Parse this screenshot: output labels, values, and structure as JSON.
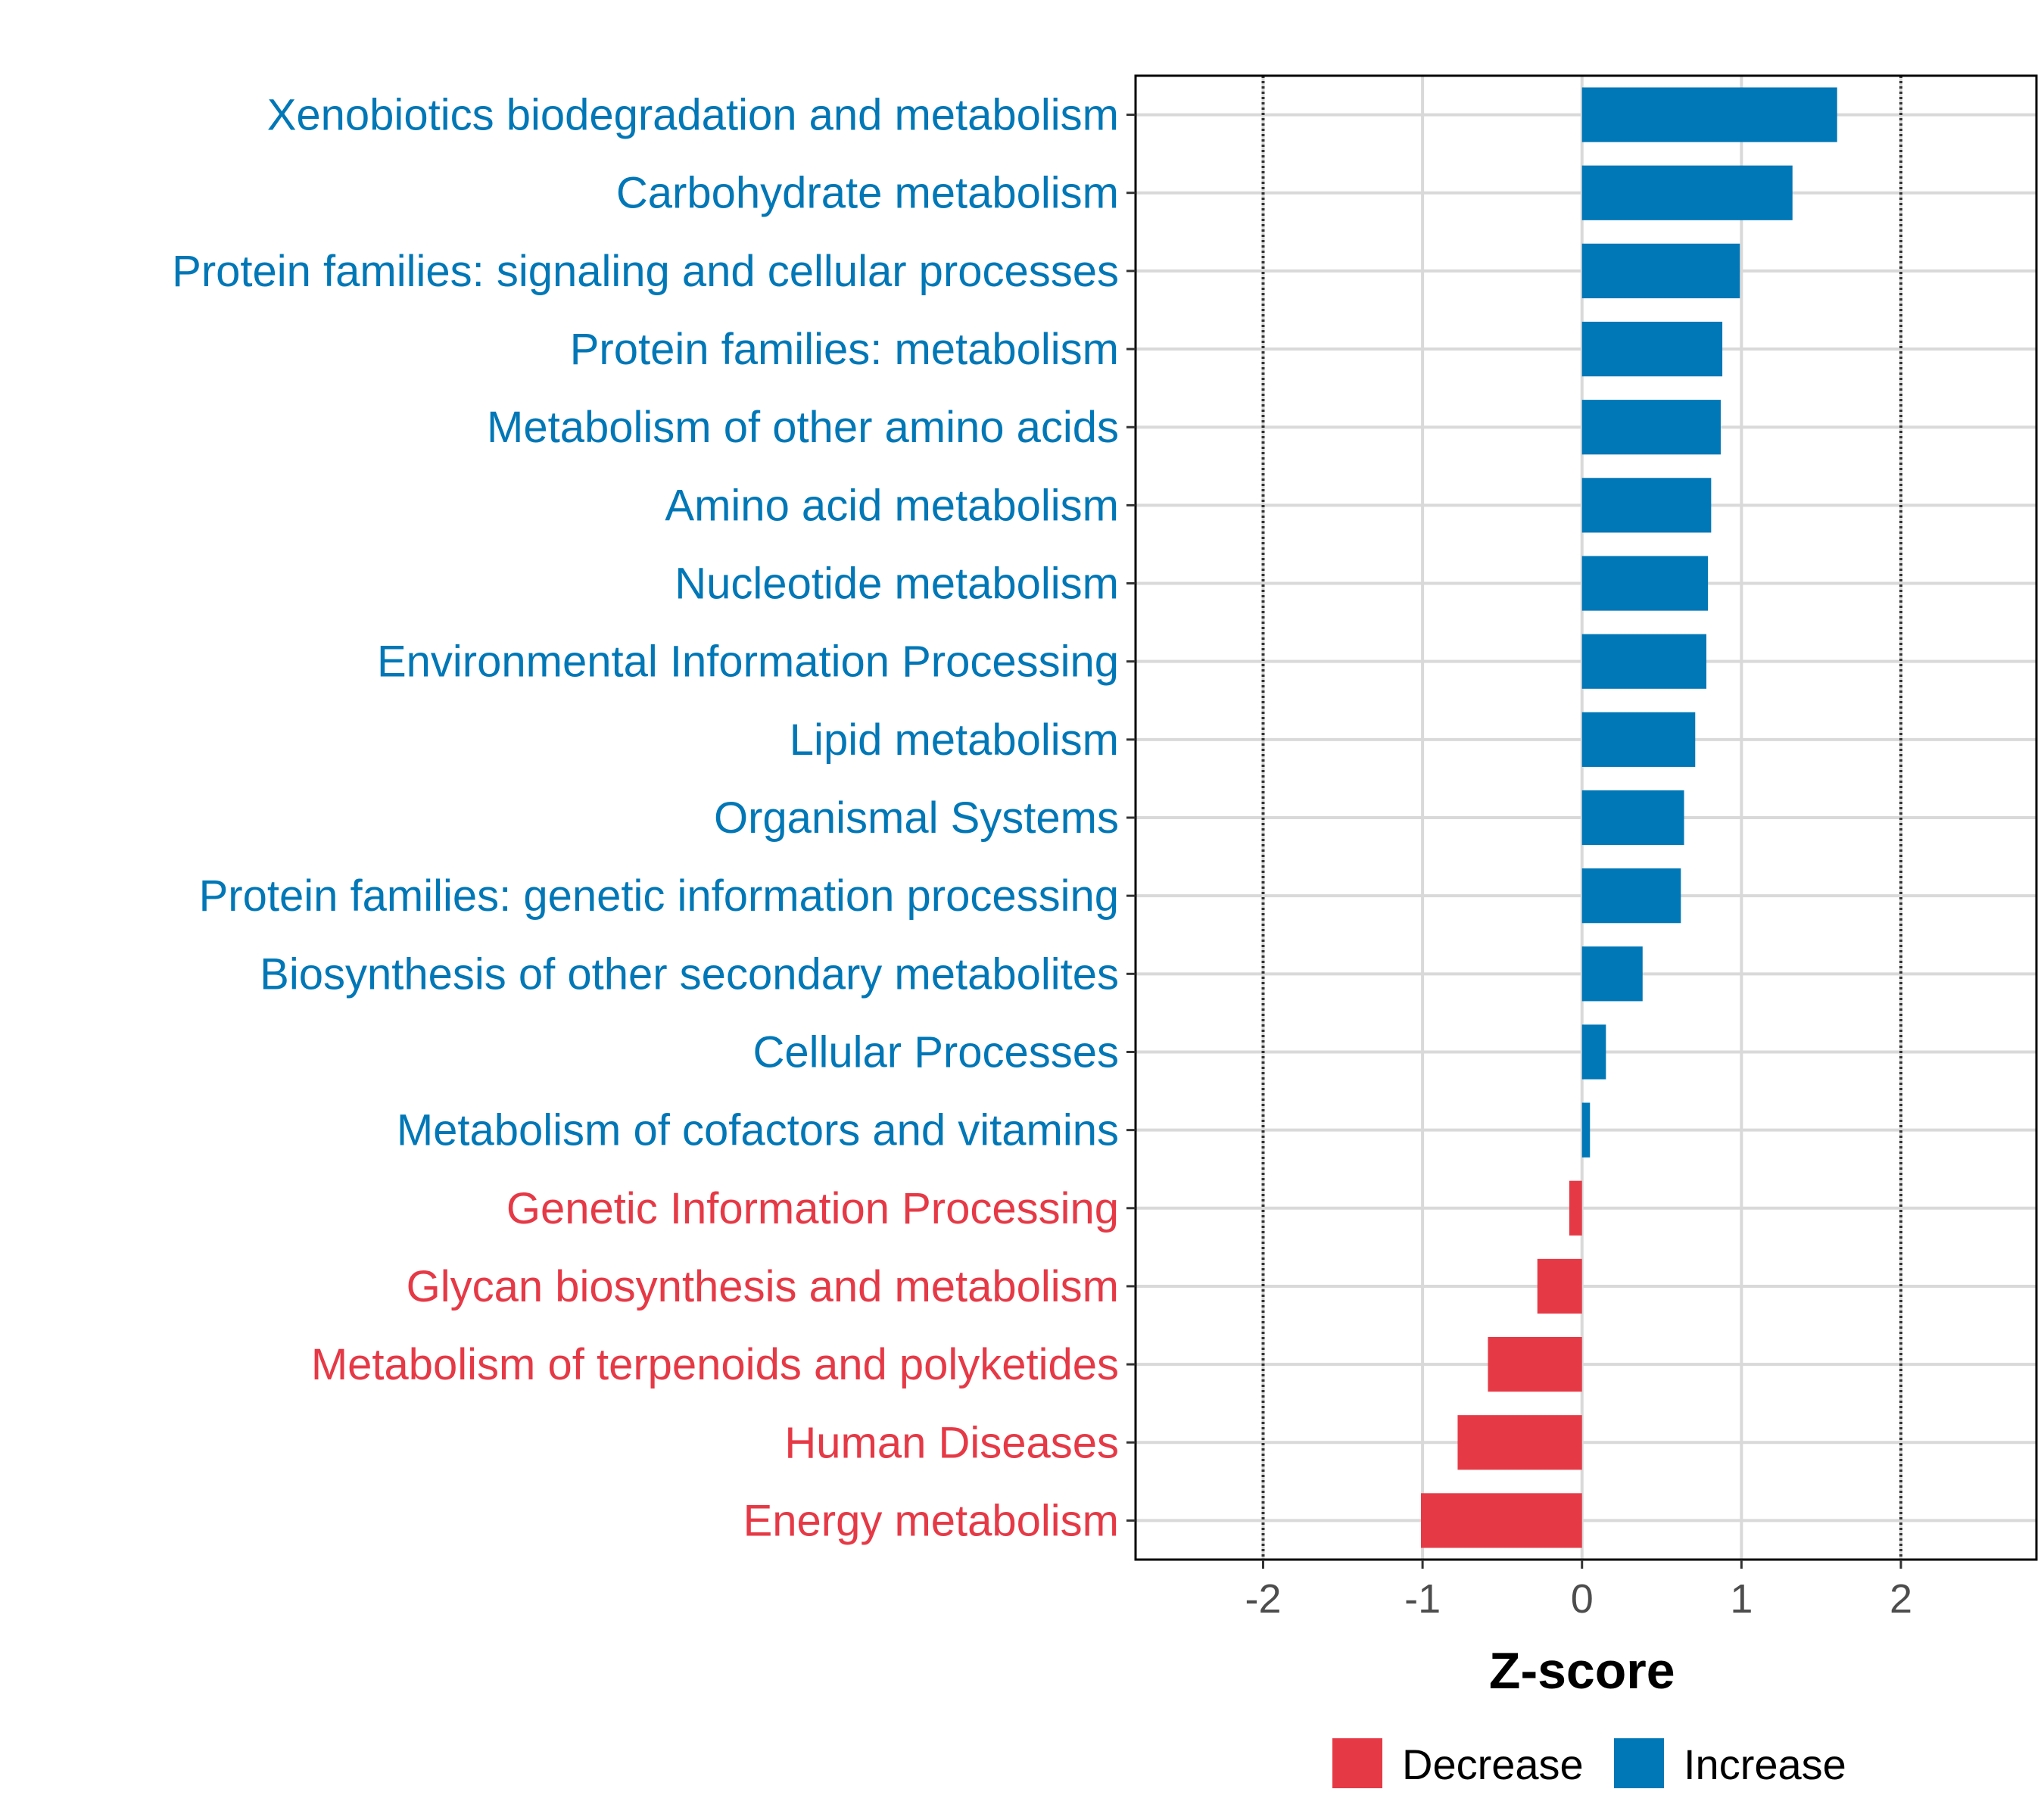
{
  "chart_data": {
    "type": "bar",
    "orientation": "horizontal",
    "title": "",
    "xlabel": "Z-score",
    "ylabel": "",
    "xlim": [
      -2.8,
      2.85
    ],
    "xticks": [
      -2,
      -1,
      0,
      1,
      2
    ],
    "xtick_labels": [
      "-2",
      "-1",
      "0",
      "1",
      "2"
    ],
    "reference_lines": [
      -2,
      2
    ],
    "grid": true,
    "colors": {
      "Decrease": "#e63946",
      "Increase": "#0077b6"
    },
    "categories": [
      "Xenobiotics biodegradation and metabolism",
      "Carbohydrate metabolism",
      "Protein families: signaling and cellular processes",
      "Protein families: metabolism",
      "Metabolism of other amino acids",
      "Amino acid metabolism",
      "Nucleotide metabolism",
      "Environmental Information Processing",
      "Lipid metabolism",
      "Organismal Systems",
      "Protein families: genetic information processing",
      "Biosynthesis of other secondary metabolites",
      "Cellular Processes",
      "Metabolism of cofactors and vitamins",
      "Genetic Information Processing",
      "Glycan biosynthesis and metabolism",
      "Metabolism of terpenoids and polyketides",
      "Human Diseases",
      "Energy metabolism"
    ],
    "values": [
      1.6,
      1.32,
      0.99,
      0.88,
      0.87,
      0.81,
      0.79,
      0.78,
      0.71,
      0.64,
      0.62,
      0.38,
      0.15,
      0.05,
      -0.08,
      -0.28,
      -0.59,
      -0.78,
      -1.01
    ],
    "groups": [
      "Increase",
      "Increase",
      "Increase",
      "Increase",
      "Increase",
      "Increase",
      "Increase",
      "Increase",
      "Increase",
      "Increase",
      "Increase",
      "Increase",
      "Increase",
      "Increase",
      "Decrease",
      "Decrease",
      "Decrease",
      "Decrease",
      "Decrease"
    ],
    "legend": {
      "position": "bottom",
      "entries": [
        "Decrease",
        "Increase"
      ]
    }
  }
}
